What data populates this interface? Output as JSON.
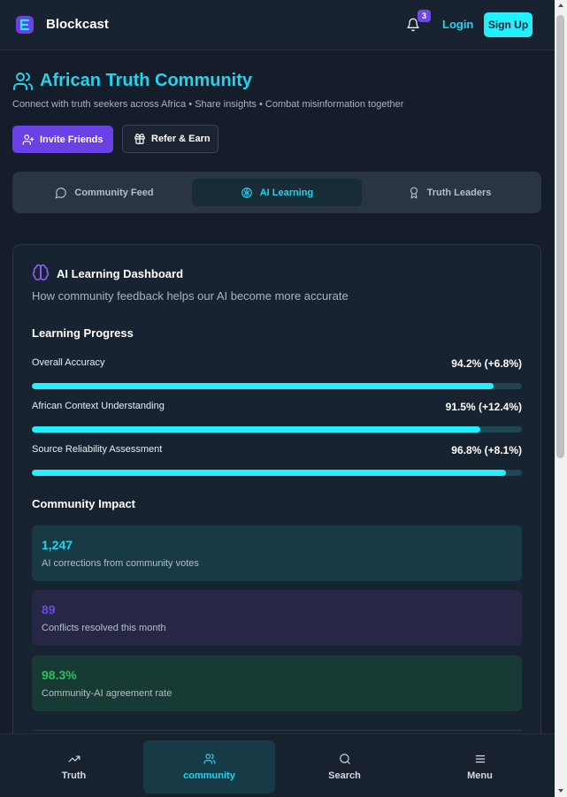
{
  "header": {
    "brand": "Blockcast",
    "notification_count": "3",
    "login_label": "Login",
    "signup_label": "Sign Up"
  },
  "page": {
    "title": "African Truth Community",
    "subtitle": "Connect with truth seekers across Africa • Share insights • Combat misinformation together",
    "invite_label": "Invite Friends",
    "refer_label": "Refer & Earn"
  },
  "tabs": [
    {
      "label": "Community Feed",
      "icon": "message-circle-icon",
      "active": false
    },
    {
      "label": "AI Learning",
      "icon": "brain-icon",
      "active": true
    },
    {
      "label": "Truth Leaders",
      "icon": "award-icon",
      "active": false
    }
  ],
  "dashboard": {
    "title": "AI Learning Dashboard",
    "subtitle": "How community feedback helps our AI become more accurate",
    "progress_title": "Learning Progress",
    "metrics": [
      {
        "label": "Overall Accuracy",
        "value": "94.2% (+6.8%)",
        "percent": 94.2
      },
      {
        "label": "African Context Understanding",
        "value": "91.5% (+12.4%)",
        "percent": 91.5
      },
      {
        "label": "Source Reliability Assessment",
        "value": "96.8% (+8.1%)",
        "percent": 96.8
      }
    ],
    "impact_title": "Community Impact",
    "impact": [
      {
        "value": "1,247",
        "label": "AI corrections from community votes",
        "color": "#22d3ee",
        "bg": "#173a44"
      },
      {
        "value": "89",
        "label": "Conflicts resolved this month",
        "color": "#6d4ae8",
        "bg": "#252745"
      },
      {
        "value": "98.3%",
        "label": "Community-AI agreement rate",
        "color": "#22c55e",
        "bg": "#183a34"
      }
    ]
  },
  "bottom_nav": [
    {
      "label": "Truth",
      "icon": "trending-up-icon",
      "active": false
    },
    {
      "label": "community",
      "icon": "users-icon",
      "active": true
    },
    {
      "label": "Search",
      "icon": "search-icon",
      "active": false
    },
    {
      "label": "Menu",
      "icon": "menu-icon",
      "active": false
    }
  ],
  "colors": {
    "accent": "#22d3ee",
    "purple": "#6941e4",
    "background": "#141d29"
  }
}
